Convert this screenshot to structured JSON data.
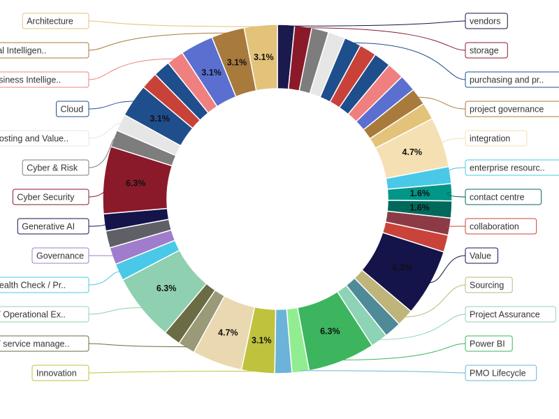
{
  "chart_data": {
    "type": "pie",
    "style": "donut",
    "unit": "%",
    "segments": [
      {
        "label": "vendors",
        "value": 1.6,
        "color": "#1a1a4e"
      },
      {
        "label": "storage",
        "value": 1.6,
        "color": "#8a1a2a"
      },
      {
        "label": "",
        "value": 1.6,
        "color": "#7d7d7d"
      },
      {
        "label": "",
        "value": 1.6,
        "color": "#e6e6e6"
      },
      {
        "label": "purchasing and pr..",
        "value": 1.6,
        "color": "#1f4e8c"
      },
      {
        "label": "",
        "value": 1.6,
        "color": "#c8423a"
      },
      {
        "label": "",
        "value": 1.6,
        "color": "#1f4e8c"
      },
      {
        "label": "",
        "value": 1.6,
        "color": "#f08080"
      },
      {
        "label": "",
        "value": 1.6,
        "color": "#5a6fd0"
      },
      {
        "label": "project governance",
        "value": 1.6,
        "color": "#a87a3c"
      },
      {
        "label": "",
        "value": 1.6,
        "color": "#e3c27a"
      },
      {
        "label": "integration",
        "value": 4.7,
        "color": "#f5e0b3",
        "show_label": true
      },
      {
        "label": "enterprise resourc..",
        "value": 1.6,
        "color": "#4ac8e8"
      },
      {
        "label": "contact centre",
        "value": 1.6,
        "color": "#009688",
        "show_label": true
      },
      {
        "label": "",
        "value": 1.6,
        "color": "#00695c",
        "show_label": true
      },
      {
        "label": "collaboration",
        "value": 1.6,
        "color": "#8b3a46"
      },
      {
        "label": "",
        "value": 1.6,
        "color": "#c9433a"
      },
      {
        "label": "Value",
        "value": 6.3,
        "color": "#14134a",
        "show_label": true
      },
      {
        "label": "Sourcing",
        "value": 1.6,
        "color": "#bfb57a"
      },
      {
        "label": "",
        "value": 1.6,
        "color": "#4f8a99"
      },
      {
        "label": "Project Assurance",
        "value": 1.6,
        "color": "#8dd3b5"
      },
      {
        "label": "Power BI",
        "value": 6.3,
        "color": "#3cb55e",
        "show_label": true
      },
      {
        "label": "PMO Lifecycle",
        "value": 1.6,
        "color": "#90ee90"
      },
      {
        "label": "",
        "value": 1.6,
        "color": "#6bb3d9"
      },
      {
        "label": "Innovation",
        "value": 3.1,
        "color": "#bfc23c",
        "show_label": true
      },
      {
        "label": "",
        "value": 4.7,
        "color": "#ead8b0",
        "show_label": true
      },
      {
        "label": "IT service manage..",
        "value": 1.6,
        "color": "#9a9a78"
      },
      {
        "label": "",
        "value": 1.6,
        "color": "#6b6b44"
      },
      {
        "label": "IT Operational Ex..",
        "value": 6.3,
        "color": "#8fd0b0",
        "show_label": true
      },
      {
        "label": "Health Check / Pr..",
        "value": 1.6,
        "color": "#4ac8e8"
      },
      {
        "label": "Governance",
        "value": 1.6,
        "color": "#a07ccc"
      },
      {
        "label": "",
        "value": 1.6,
        "color": "#5f5f66"
      },
      {
        "label": "Generative AI",
        "value": 1.6,
        "color": "#14134a"
      },
      {
        "label": "Cyber Security",
        "value": 6.3,
        "color": "#8a1a2a",
        "show_label": true
      },
      {
        "label": "Cyber & Risk",
        "value": 1.6,
        "color": "#7d7d7d"
      },
      {
        "label": "Costing and Value..",
        "value": 1.6,
        "color": "#e6e6e6"
      },
      {
        "label": "Cloud",
        "value": 3.1,
        "color": "#1f4e8c",
        "show_label": true
      },
      {
        "label": "",
        "value": 1.6,
        "color": "#c8423a"
      },
      {
        "label": "",
        "value": 1.6,
        "color": "#1f4e8c"
      },
      {
        "label": "Business Intellige..",
        "value": 1.6,
        "color": "#f08080"
      },
      {
        "label": "",
        "value": 3.1,
        "color": "#5a6fd0",
        "show_label": true
      },
      {
        "label": "Artificial Intelligen..",
        "value": 3.1,
        "color": "#a87a3c",
        "show_label": true
      },
      {
        "label": "Architecture",
        "value": 3.1,
        "color": "#e3c27a",
        "show_label": true
      }
    ],
    "legend_left": [
      {
        "label": "Architecture",
        "color": "#e3c27a"
      },
      {
        "label": "Artificial Intelligen..",
        "color": "#a87a3c"
      },
      {
        "label": "Business Intellige..",
        "color": "#f08080"
      },
      {
        "label": "Cloud",
        "color": "#1f4e8c"
      },
      {
        "label": "Costing and Value..",
        "color": "#e6e6e6"
      },
      {
        "label": "Cyber & Risk",
        "color": "#7d7d7d"
      },
      {
        "label": "Cyber Security",
        "color": "#8a1a2a"
      },
      {
        "label": "Generative AI",
        "color": "#14134a"
      },
      {
        "label": "Governance",
        "color": "#a07ccc"
      },
      {
        "label": "Health Check / Pr..",
        "color": "#4ac8e8"
      },
      {
        "label": "IT Operational Ex..",
        "color": "#8fd0b0"
      },
      {
        "label": "IT service manage..",
        "color": "#6b6b44"
      },
      {
        "label": "Innovation",
        "color": "#bfc23c"
      }
    ],
    "legend_right": [
      {
        "label": "vendors",
        "color": "#14134a"
      },
      {
        "label": "storage",
        "color": "#8a1a2a"
      },
      {
        "label": "purchasing and pr..",
        "color": "#1f4e8c"
      },
      {
        "label": "project governance",
        "color": "#a87a3c"
      },
      {
        "label": "integration",
        "color": "#f5e0b3"
      },
      {
        "label": "enterprise resourc..",
        "color": "#4ac8e8"
      },
      {
        "label": "contact centre",
        "color": "#00695c"
      },
      {
        "label": "collaboration",
        "color": "#c9433a"
      },
      {
        "label": "Value",
        "color": "#14134a"
      },
      {
        "label": "Sourcing",
        "color": "#bfb57a"
      },
      {
        "label": "Project Assurance",
        "color": "#8dd3b5"
      },
      {
        "label": "Power BI",
        "color": "#3cb55e"
      },
      {
        "label": "PMO Lifecycle",
        "color": "#6bb3d9"
      }
    ]
  }
}
